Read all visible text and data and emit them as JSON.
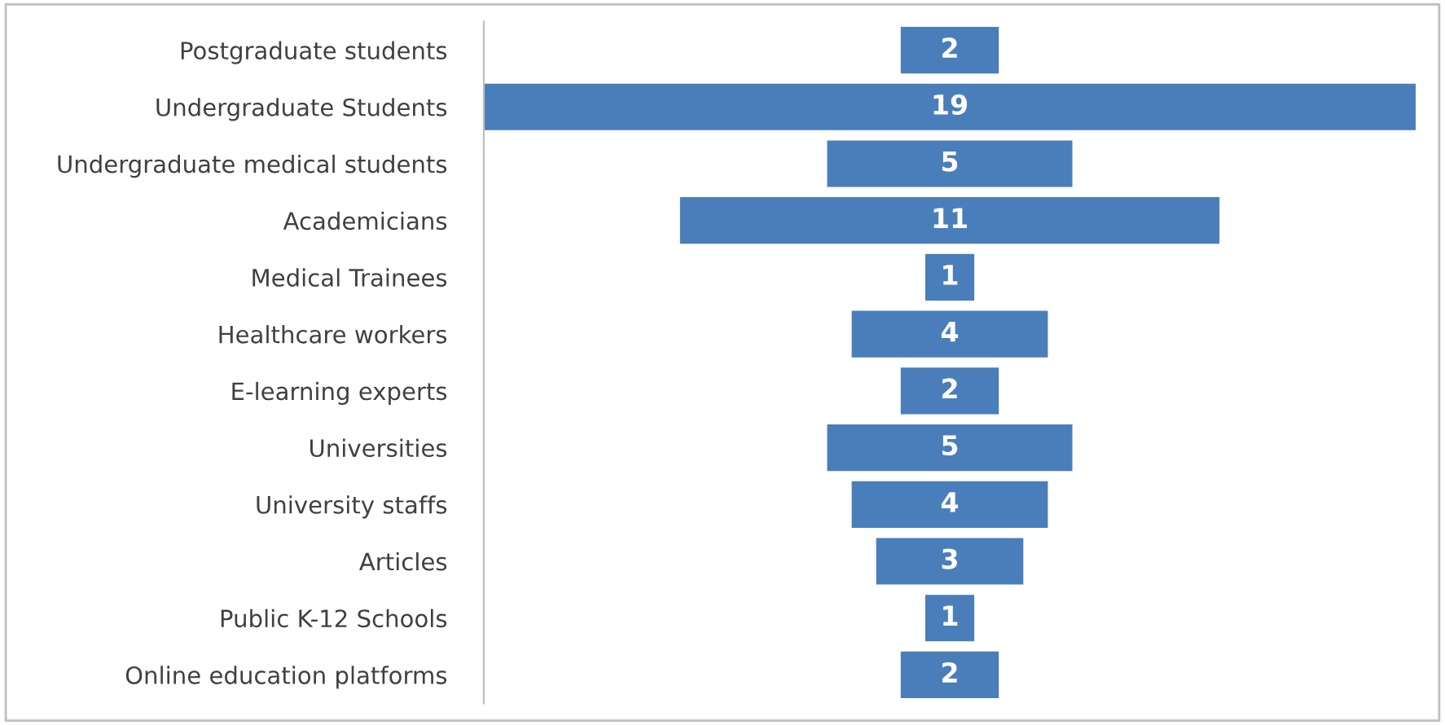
{
  "chart_data": {
    "type": "other",
    "categories": [
      "Postgraduate students",
      "Undergraduate Students",
      "Undergraduate medical students",
      "Academicians",
      "Medical Trainees",
      "Healthcare workers",
      "E-learning experts",
      "Universities",
      "University staffs",
      "Articles",
      "Public K-12 Schools",
      "Online education platforms"
    ],
    "values": [
      2,
      19,
      5,
      11,
      1,
      4,
      2,
      5,
      4,
      3,
      1,
      2
    ],
    "color": "#4a7ebb",
    "data_labels": true
  }
}
